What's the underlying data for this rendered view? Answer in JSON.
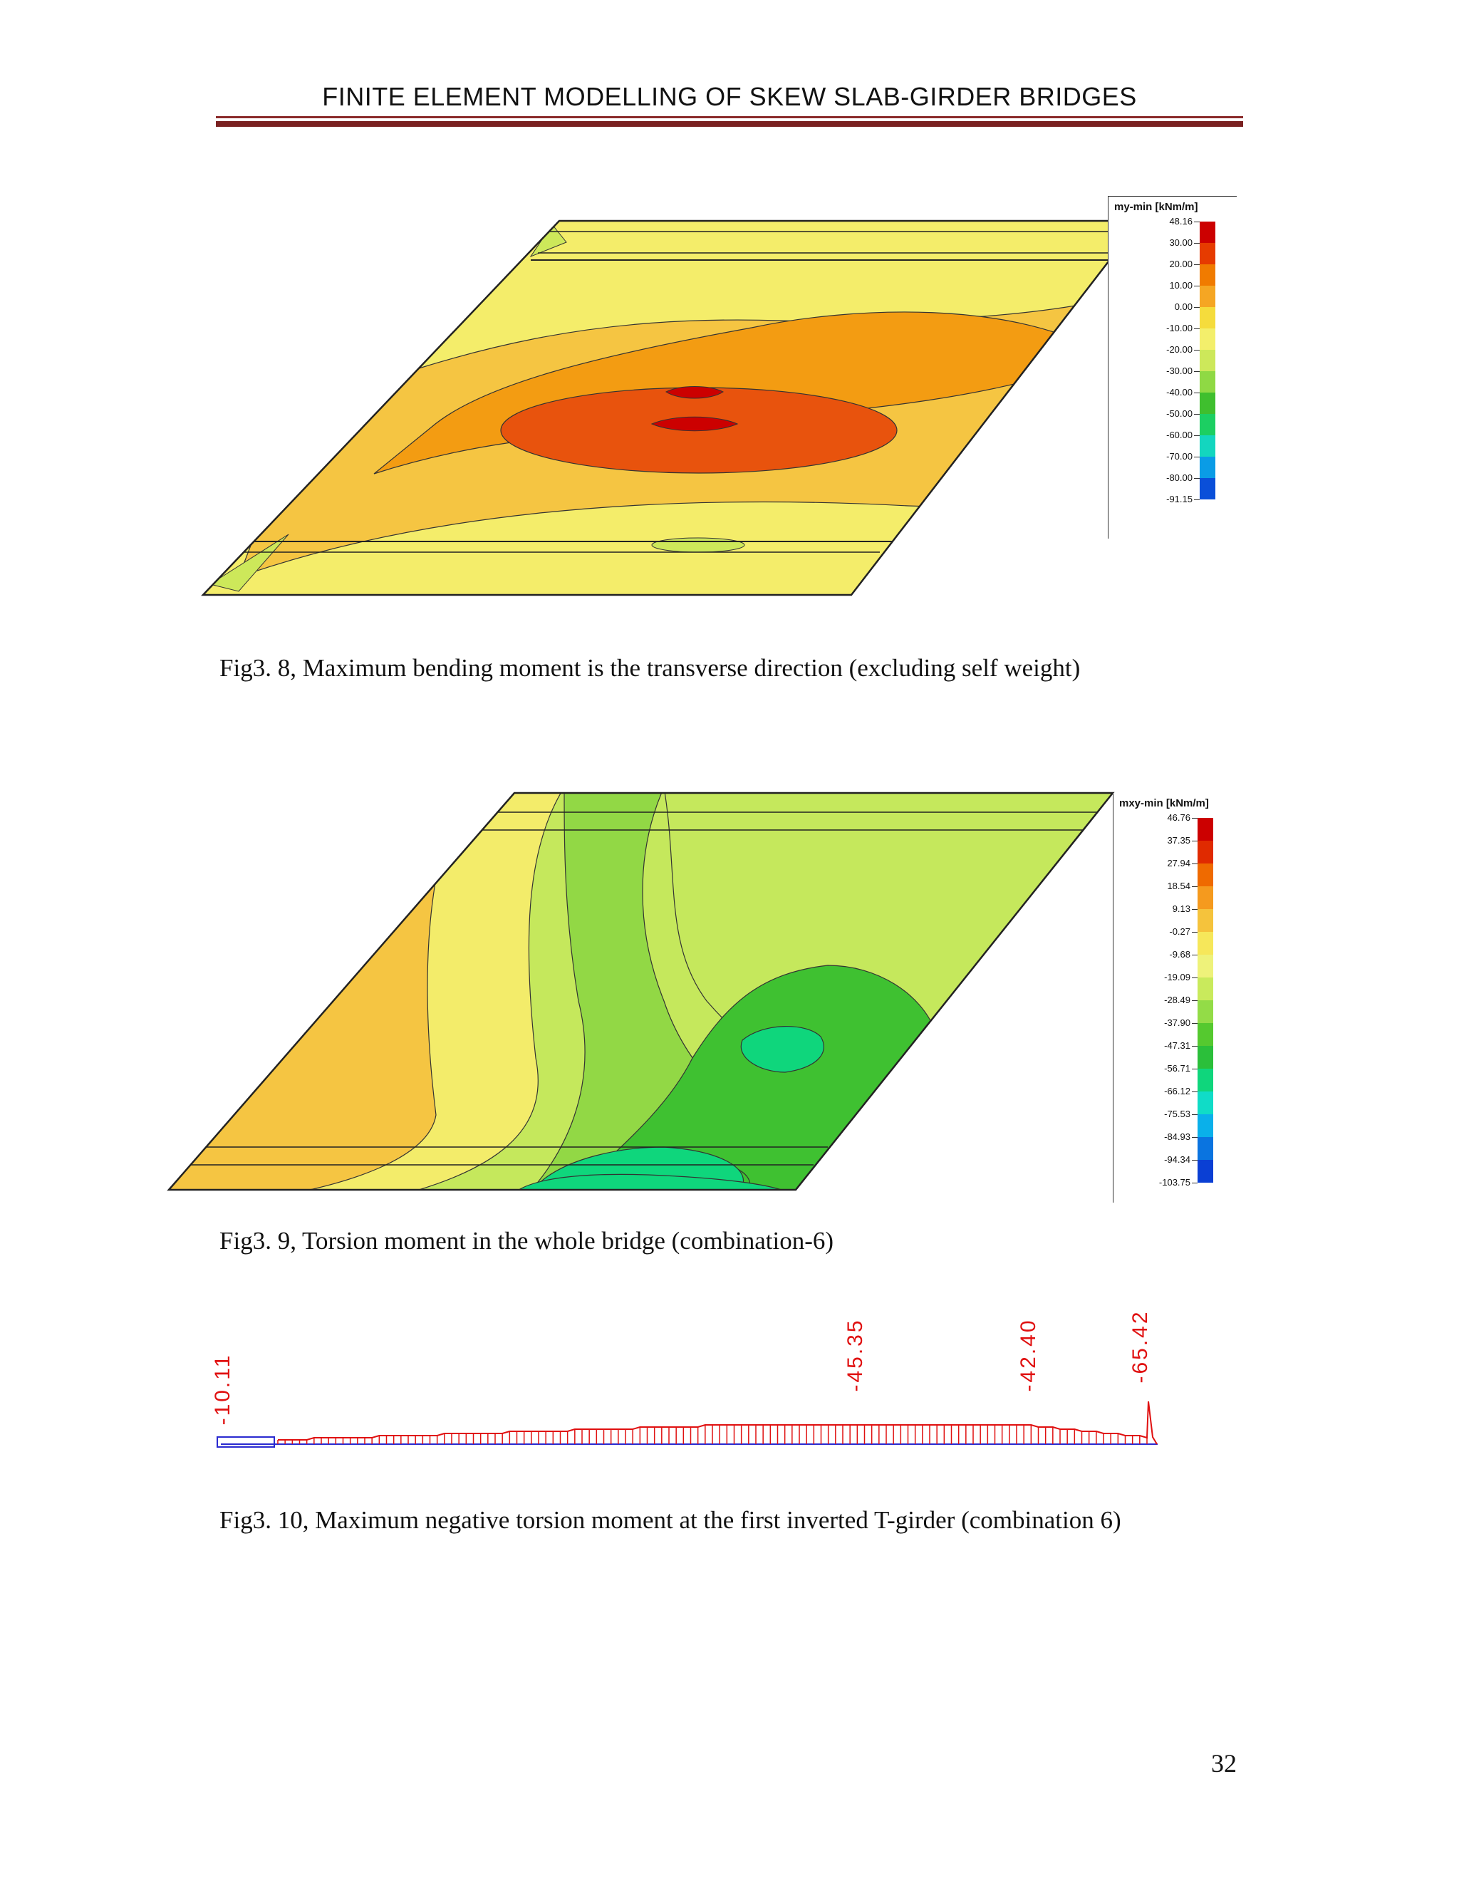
{
  "header": {
    "title": "FINITE ELEMENT MODELLING OF SKEW SLAB-GIRDER BRIDGES"
  },
  "figures": [
    {
      "id": "fig3-8",
      "caption": "Fig3. 8, Maximum bending moment is the transverse direction (excluding self weight)",
      "legend": {
        "title": "my-min [kNm/m]",
        "labels": [
          "48.16",
          "30.00",
          "20.00",
          "10.00",
          "0.00",
          "-10.00",
          "-20.00",
          "-30.00",
          "-40.00",
          "-50.00",
          "-60.00",
          "-70.00",
          "-80.00",
          "-91.15"
        ],
        "colors": [
          "#cc0000",
          "#e63b00",
          "#f07b00",
          "#f5a623",
          "#f5dc3c",
          "#f3ef6b",
          "#cde85a",
          "#8fd944",
          "#3fbf2e",
          "#1ccf62",
          "#13d6bf",
          "#0a9ce6",
          "#0a4fd9",
          "#2a00b8"
        ]
      }
    },
    {
      "id": "fig3-9",
      "caption": "Fig3. 9, Torsion moment in the whole bridge (combination-6)",
      "legend": {
        "title": "mxy-min [kNm/m]",
        "labels": [
          "46.76",
          "37.35",
          "27.94",
          "18.54",
          "9.13",
          "-0.27",
          "-9.68",
          "-19.09",
          "-28.49",
          "-37.90",
          "-47.31",
          "-56.71",
          "-66.12",
          "-75.53",
          "-84.93",
          "-94.34",
          "-103.75"
        ],
        "colors": [
          "#cc0000",
          "#e02a00",
          "#ef6a00",
          "#f59a1e",
          "#f5c33c",
          "#f6e75a",
          "#eef27a",
          "#c9ea5c",
          "#93dc47",
          "#55c92f",
          "#2bbf3a",
          "#0fd67c",
          "#10dcc7",
          "#0ab0ea",
          "#0a74e0",
          "#0a3fd4",
          "#3a00b8"
        ]
      }
    },
    {
      "id": "fig3-10",
      "caption": "Fig3. 10, Maximum negative torsion moment at the first inverted T-girder (combination 6)",
      "peak_labels": [
        "-10.11",
        "-45.35",
        "-42.40",
        "-65.42"
      ]
    }
  ],
  "page_number": "32"
}
